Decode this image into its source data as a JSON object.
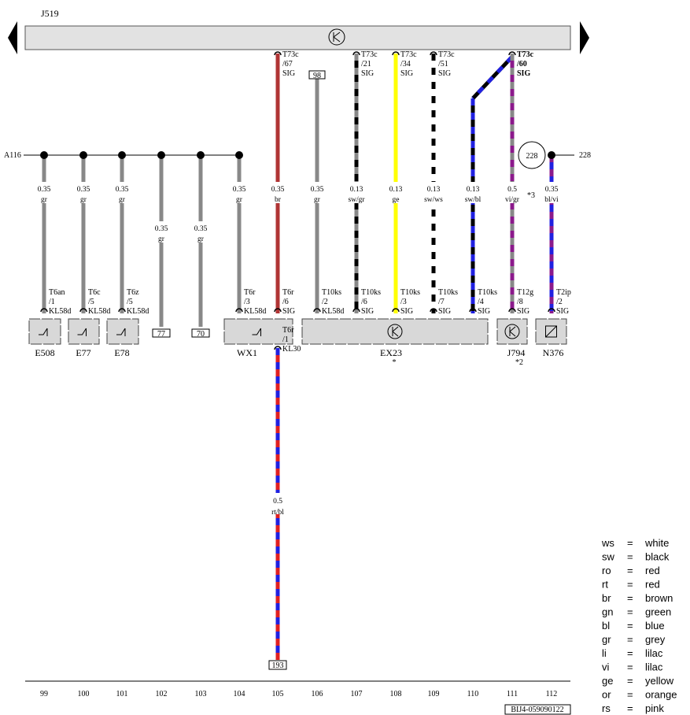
{
  "header": {
    "module": "J519"
  },
  "bus": {
    "left_label": "A116",
    "right_label": "228",
    "circle_label": "228"
  },
  "columns": [
    "99",
    "100",
    "101",
    "102",
    "103",
    "104",
    "105",
    "106",
    "107",
    "108",
    "109",
    "110",
    "111",
    "112"
  ],
  "wires": [
    {
      "size": "0.35",
      "color": "gr"
    },
    {
      "size": "0.35",
      "color": "gr"
    },
    {
      "size": "0.35",
      "color": "gr"
    },
    {
      "size": "0.35",
      "color": "gr"
    },
    {
      "size": "0.35",
      "color": "gr"
    },
    {
      "size": "0.35",
      "color": "gr"
    },
    {
      "size": "0.35",
      "color": "br"
    },
    {
      "size": "0.35",
      "color": "gr"
    },
    {
      "size": "0.13",
      "color": "sw/gr"
    },
    {
      "size": "0.13",
      "color": "ge"
    },
    {
      "size": "0.13",
      "color": "sw/ws"
    },
    {
      "size": "0.13",
      "color": "sw/bl"
    },
    {
      "size": "0.5",
      "color": "vi/gr"
    },
    {
      "size": "0.35",
      "color": "bl/vi"
    }
  ],
  "top_connectors": [
    [
      "T73c",
      "/67",
      "SIG"
    ],
    [
      "T73c",
      "/21",
      "SIG"
    ],
    [
      "T73c",
      "/34",
      "SIG"
    ],
    [
      "T73c",
      "/51",
      "SIG"
    ],
    [
      "T73c",
      "/60",
      "SIG"
    ]
  ],
  "top_box": "98",
  "note": "*3",
  "bottom_connectors": [
    [
      "T6an",
      "/1",
      "KL58d"
    ],
    [
      "T6c",
      "/5",
      "KL58d"
    ],
    [
      "T6z",
      "/5",
      "KL58d"
    ],
    [
      "T6r",
      "/3",
      "KL58d"
    ],
    [
      "T6r",
      "/6",
      "SIG"
    ],
    [
      "T10ks",
      "/2",
      "KL58d"
    ],
    [
      "T10ks",
      "/6",
      "SIG"
    ],
    [
      "T10ks",
      "/3",
      "SIG"
    ],
    [
      "T10ks",
      "/7",
      "SIG"
    ],
    [
      "T10ks",
      "/4",
      "SIG"
    ],
    [
      "T12g",
      "/8",
      "SIG"
    ],
    [
      "T2ip",
      "/2",
      "SIG"
    ]
  ],
  "bottom_boxes": [
    "77",
    "70"
  ],
  "components": [
    {
      "name": "E508"
    },
    {
      "name": "E77"
    },
    {
      "name": "E78"
    },
    {
      "name": "WX1"
    },
    {
      "name": "EX23",
      "note": "*"
    },
    {
      "name": "J794",
      "note": "*2"
    },
    {
      "name": "N376"
    }
  ],
  "lower_wire": {
    "connector": [
      "T6r",
      "/1",
      "KL30"
    ],
    "size": "0.5",
    "color": "rt/bl",
    "box": "193"
  },
  "legend": [
    [
      "ws",
      "=",
      "white"
    ],
    [
      "sw",
      "=",
      "black"
    ],
    [
      "ro",
      "=",
      "red"
    ],
    [
      "rt",
      "=",
      "red"
    ],
    [
      "br",
      "=",
      "brown"
    ],
    [
      "gn",
      "=",
      "green"
    ],
    [
      "bl",
      "=",
      "blue"
    ],
    [
      "gr",
      "=",
      "grey"
    ],
    [
      "li",
      "=",
      "lilac"
    ],
    [
      "vi",
      "=",
      "lilac"
    ],
    [
      "ge",
      "=",
      "yellow"
    ],
    [
      "or",
      "=",
      "orange"
    ],
    [
      "rs",
      "=",
      "pink"
    ]
  ],
  "footer": "BIJ4-059090122"
}
